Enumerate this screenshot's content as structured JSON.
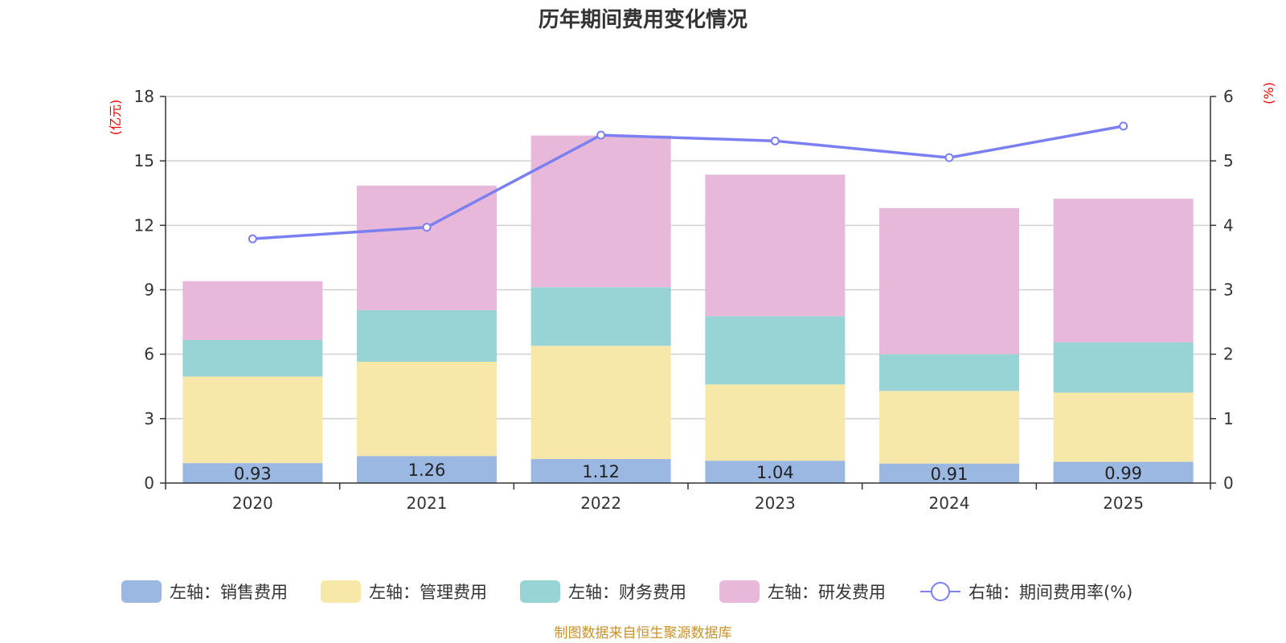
{
  "chart_data": {
    "type": "bar",
    "title": "历年期间费用变化情况",
    "categories": [
      "2020",
      "2021",
      "2022",
      "2023",
      "2024",
      "2025"
    ],
    "y_left": {
      "unit": "(亿元)",
      "min": 0,
      "max": 18,
      "ticks": [
        0,
        3,
        6,
        9,
        12,
        15,
        18
      ]
    },
    "y_right": {
      "unit": "(%)",
      "min": 0,
      "max": 6,
      "ticks": [
        0,
        1,
        2,
        3,
        4,
        5,
        6
      ]
    },
    "series": [
      {
        "name": "左轴：销售费用",
        "type": "bar",
        "axis": "left",
        "color": "#9ab8e2",
        "values": [
          0.93,
          1.26,
          1.12,
          1.04,
          0.91,
          0.99
        ],
        "labels": [
          "0.93",
          "1.26",
          "1.12",
          "1.04",
          "0.91",
          "0.99"
        ]
      },
      {
        "name": "左轴：管理费用",
        "type": "bar",
        "axis": "left",
        "color": "#f7e7a8",
        "values": [
          4.03,
          4.39,
          5.27,
          3.55,
          3.38,
          3.22
        ]
      },
      {
        "name": "左轴：财务费用",
        "type": "bar",
        "axis": "left",
        "color": "#98d4d5",
        "values": [
          1.7,
          2.4,
          2.73,
          3.18,
          1.71,
          2.34
        ]
      },
      {
        "name": "左轴：研发费用",
        "type": "bar",
        "axis": "left",
        "color": "#e7b8d9",
        "values": [
          2.74,
          5.8,
          7.06,
          6.59,
          6.8,
          6.69
        ]
      },
      {
        "name": "右轴：期间费用率(%)",
        "type": "line",
        "axis": "right",
        "color": "#7b7ff0",
        "values": [
          3.79,
          3.97,
          5.4,
          5.31,
          5.05,
          5.54
        ]
      }
    ],
    "legend_position": "bottom-center",
    "source": "制图数据来自恒生聚源数据库"
  }
}
